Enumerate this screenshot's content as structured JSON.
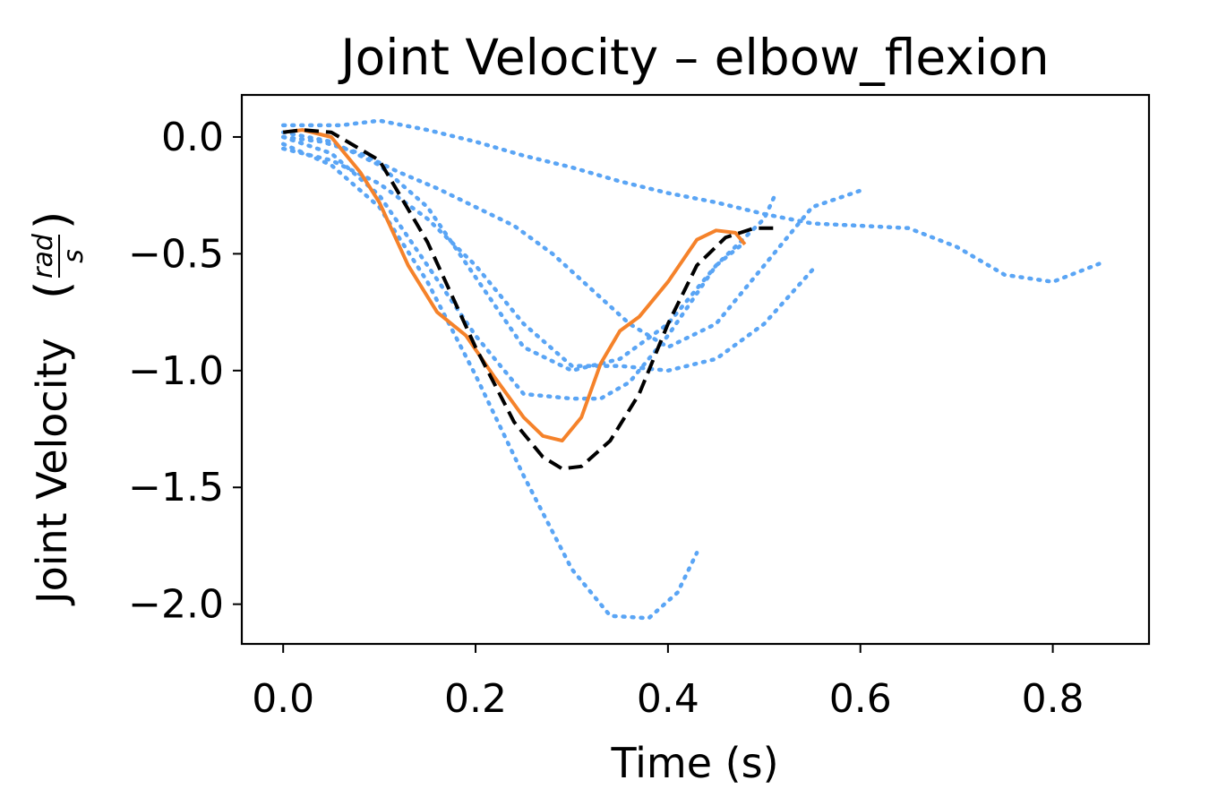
{
  "chart_data": {
    "type": "line",
    "title": "Joint Velocity – elbow_flexion",
    "xlabel": "Time (s)",
    "ylabel": "Joint Velocity",
    "ylabel_unit_num": "rad",
    "ylabel_unit_den": "s",
    "xlim": [
      -0.043,
      0.9
    ],
    "ylim": [
      -2.17,
      0.18
    ],
    "xticks": [
      0.0,
      0.2,
      0.4,
      0.6,
      0.8
    ],
    "xtick_labels": [
      "0.0",
      "0.2",
      "0.4",
      "0.6",
      "0.8"
    ],
    "yticks": [
      0.0,
      -0.5,
      -1.0,
      -1.5,
      -2.0
    ],
    "ytick_labels": [
      "0.0",
      "−0.5",
      "−1.0",
      "−1.5",
      "−2.0"
    ],
    "grid": false,
    "legend": null,
    "series": [
      {
        "style": "dotted",
        "color": "#5aa5f5",
        "x": [
          0,
          0.03,
          0.06,
          0.1,
          0.15,
          0.2,
          0.25,
          0.3,
          0.35,
          0.4,
          0.45,
          0.5,
          0.55,
          0.6,
          0.65,
          0.7,
          0.75,
          0.8,
          0.85
        ],
        "y": [
          0.05,
          0.05,
          0.05,
          0.07,
          0.03,
          -0.02,
          -0.08,
          -0.13,
          -0.19,
          -0.24,
          -0.28,
          -0.33,
          -0.37,
          -0.38,
          -0.39,
          -0.47,
          -0.59,
          -0.62,
          -0.54
        ]
      },
      {
        "style": "dotted",
        "color": "#5aa5f5",
        "x": [
          0,
          0.04,
          0.08,
          0.12,
          0.16,
          0.2,
          0.24,
          0.28,
          0.32,
          0.36,
          0.4,
          0.45,
          0.5,
          0.55,
          0.6
        ],
        "y": [
          0.0,
          -0.02,
          -0.07,
          -0.15,
          -0.22,
          -0.3,
          -0.38,
          -0.5,
          -0.65,
          -0.8,
          -0.9,
          -0.8,
          -0.55,
          -0.3,
          -0.23
        ]
      },
      {
        "style": "dotted",
        "color": "#5aa5f5",
        "x": [
          0,
          0.05,
          0.1,
          0.15,
          0.2,
          0.25,
          0.3,
          0.35,
          0.4,
          0.45,
          0.5,
          0.55
        ],
        "y": [
          -0.05,
          -0.1,
          -0.2,
          -0.35,
          -0.55,
          -0.8,
          -0.98,
          -0.98,
          -1.0,
          -0.95,
          -0.8,
          -0.57
        ]
      },
      {
        "style": "dotted",
        "color": "#5aa5f5",
        "x": [
          0,
          0.05,
          0.1,
          0.15,
          0.2,
          0.25,
          0.3,
          0.35,
          0.4,
          0.45,
          0.5,
          0.51
        ],
        "y": [
          0.02,
          -0.02,
          -0.12,
          -0.3,
          -0.6,
          -0.9,
          -1.0,
          -0.95,
          -0.8,
          -0.55,
          -0.35,
          -0.26
        ]
      },
      {
        "style": "dotted",
        "color": "#5aa5f5",
        "x": [
          0,
          0.05,
          0.1,
          0.15,
          0.2,
          0.25,
          0.3,
          0.33,
          0.36,
          0.4,
          0.45,
          0.48
        ],
        "y": [
          0.0,
          -0.07,
          -0.25,
          -0.55,
          -0.85,
          -1.1,
          -1.12,
          -1.12,
          -1.05,
          -0.85,
          -0.55,
          -0.45
        ]
      },
      {
        "style": "dotted",
        "color": "#5aa5f5",
        "x": [
          0,
          0.05,
          0.1,
          0.15,
          0.2,
          0.25,
          0.3,
          0.34,
          0.38,
          0.41,
          0.43
        ],
        "y": [
          -0.03,
          -0.12,
          -0.3,
          -0.62,
          -1.02,
          -1.45,
          -1.85,
          -2.05,
          -2.06,
          -1.95,
          -1.78
        ]
      },
      {
        "style": "solid",
        "color": "#f5822a",
        "x": [
          0,
          0.02,
          0.05,
          0.08,
          0.1,
          0.13,
          0.16,
          0.19,
          0.22,
          0.25,
          0.27,
          0.29,
          0.31,
          0.33,
          0.35,
          0.37,
          0.4,
          0.43,
          0.45,
          0.47,
          0.48
        ],
        "y": [
          0.02,
          0.03,
          0.0,
          -0.15,
          -0.28,
          -0.55,
          -0.75,
          -0.85,
          -1.03,
          -1.2,
          -1.28,
          -1.3,
          -1.2,
          -0.97,
          -0.83,
          -0.77,
          -0.62,
          -0.44,
          -0.4,
          -0.41,
          -0.46
        ]
      },
      {
        "style": "dashed",
        "color": "#000000",
        "x": [
          0,
          0.02,
          0.05,
          0.1,
          0.15,
          0.2,
          0.24,
          0.27,
          0.29,
          0.31,
          0.34,
          0.37,
          0.4,
          0.43,
          0.46,
          0.49,
          0.51
        ],
        "y": [
          0.02,
          0.03,
          0.02,
          -0.1,
          -0.45,
          -0.9,
          -1.22,
          -1.37,
          -1.42,
          -1.41,
          -1.3,
          -1.1,
          -0.8,
          -0.55,
          -0.43,
          -0.39,
          -0.39
        ]
      }
    ]
  }
}
